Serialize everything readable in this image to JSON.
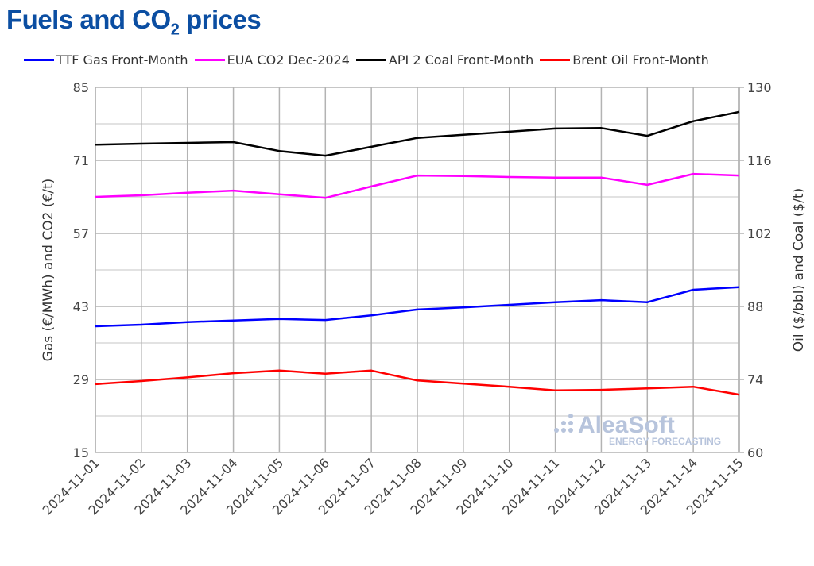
{
  "title": {
    "main": "Fuels and CO",
    "sub": "2",
    "rest": " prices"
  },
  "watermark": {
    "brand": "AleaSoft",
    "tagline": "ENERGY FORECASTING"
  },
  "chart_data": {
    "type": "line",
    "x": [
      "2024-11-01",
      "2024-11-02",
      "2024-11-03",
      "2024-11-04",
      "2024-11-05",
      "2024-11-06",
      "2024-11-07",
      "2024-11-08",
      "2024-11-09",
      "2024-11-10",
      "2024-11-11",
      "2024-11-12",
      "2024-11-13",
      "2024-11-14",
      "2024-11-15"
    ],
    "ylabel_left": "Gas (€/MWh) and CO2 (€/t)",
    "ylabel_right": "Oil ($/bbl) and Coal ($/t)",
    "ylim_left": [
      15,
      85
    ],
    "ylim_right": [
      60,
      130
    ],
    "yticks_left": [
      15,
      29,
      43,
      57,
      71,
      85
    ],
    "yticks_right": [
      60,
      74,
      88,
      102,
      116,
      130
    ],
    "grid": true,
    "legend": "top",
    "series": [
      {
        "name": "TTF Gas Front-Month",
        "color": "#0000ff",
        "axis": "left",
        "values": [
          39.2,
          39.5,
          40.0,
          40.3,
          40.6,
          40.4,
          41.3,
          42.4,
          42.8,
          43.3,
          43.8,
          44.2,
          43.8,
          46.2,
          46.7
        ]
      },
      {
        "name": "EUA CO2 Dec-2024",
        "color": "#ff00ff",
        "axis": "left",
        "values": [
          64.0,
          64.3,
          64.8,
          65.2,
          64.5,
          63.8,
          66.0,
          68.1,
          68.0,
          67.8,
          67.7,
          67.7,
          66.3,
          68.4,
          68.1
        ]
      },
      {
        "name": "API 2 Coal Front-Month",
        "color": "#000000",
        "axis": "right",
        "values": [
          119.0,
          119.2,
          119.35,
          119.5,
          117.8,
          116.9,
          118.6,
          120.3,
          120.9,
          121.5,
          122.1,
          122.2,
          120.7,
          123.5,
          125.3
        ]
      },
      {
        "name": "Brent Oil Front-Month",
        "color": "#ff0000",
        "axis": "right",
        "values": [
          73.1,
          73.7,
          74.4,
          75.2,
          75.7,
          75.1,
          75.7,
          73.8,
          73.2,
          72.6,
          71.9,
          72.0,
          72.3,
          72.6,
          71.1
        ]
      }
    ]
  }
}
